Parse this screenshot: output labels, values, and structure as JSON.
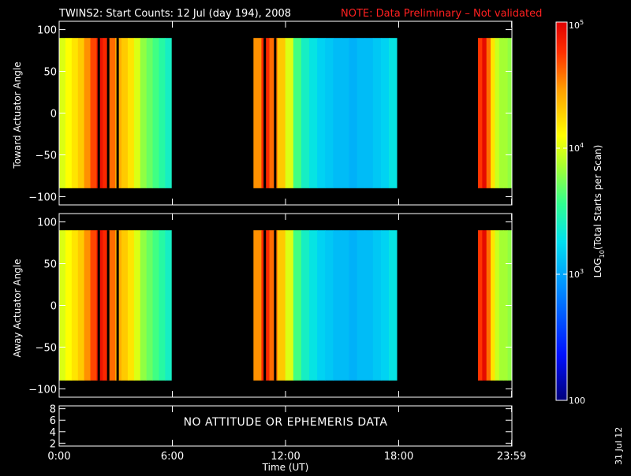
{
  "title": "TWINS2: Start Counts: 12 Jul (day 194), 2008",
  "note": "NOTE: Data Preliminary – Not validated",
  "side_date": "31 Jul 12",
  "no_data_message": "NO ATTITUDE OR EPHEMERIS DATA",
  "colors": {
    "background": "#000000",
    "axes": "#ffffff",
    "note": "#ff2020"
  },
  "chart_data": [
    {
      "type": "heatmap",
      "ylabel": "Toward Actuator Angle",
      "xlim": [
        0,
        24
      ],
      "ylim": [
        -110,
        110
      ],
      "data_y_range": [
        -90,
        90
      ],
      "y_ticks": [
        100,
        50,
        0,
        -50,
        -100
      ],
      "y_tick_labels": [
        "100",
        "50",
        "0",
        "−50",
        "−100"
      ],
      "segments": [
        {
          "start_hour": 0.0,
          "end_hour": 5.95,
          "log10_counts": [
            4.0,
            4.1,
            4.2,
            4.3,
            4.5,
            4.7,
            4.9,
            4.8,
            4.6,
            4.4,
            4.3,
            4.2,
            4.0,
            3.8,
            3.7,
            3.6,
            3.5,
            3.4
          ],
          "gaps_hours": [
            2.1,
            2.6,
            3.1
          ]
        },
        {
          "start_hour": 10.3,
          "end_hour": 17.9,
          "log10_counts": [
            4.5,
            4.8,
            4.6,
            4.3,
            4.0,
            3.6,
            3.4,
            3.3,
            3.2,
            3.15,
            3.1,
            3.1,
            3.05,
            3.1,
            3.1,
            3.15,
            3.2,
            3.3
          ],
          "gaps_hours": [
            10.9,
            11.45
          ]
        },
        {
          "start_hour": 22.2,
          "end_hour": 24.0,
          "log10_counts": [
            4.75,
            4.95,
            4.6,
            4.2,
            3.95,
            3.85,
            3.85,
            3.8
          ]
        }
      ]
    },
    {
      "type": "heatmap",
      "ylabel": "Away Actuator Angle",
      "xlim": [
        0,
        24
      ],
      "ylim": [
        -110,
        110
      ],
      "data_y_range": [
        -90,
        90
      ],
      "y_ticks": [
        100,
        50,
        0,
        -50,
        -100
      ],
      "y_tick_labels": [
        "100",
        "50",
        "0",
        "−50",
        "−100"
      ],
      "segments": [
        {
          "start_hour": 0.0,
          "end_hour": 5.95,
          "log10_counts": [
            4.0,
            4.1,
            4.2,
            4.3,
            4.5,
            4.7,
            4.9,
            4.8,
            4.6,
            4.4,
            4.3,
            4.2,
            4.0,
            3.8,
            3.7,
            3.6,
            3.5,
            3.4
          ],
          "gaps_hours": [
            2.1,
            2.6,
            3.1
          ]
        },
        {
          "start_hour": 10.3,
          "end_hour": 17.9,
          "log10_counts": [
            4.5,
            4.8,
            4.6,
            4.3,
            4.0,
            3.6,
            3.4,
            3.3,
            3.2,
            3.15,
            3.1,
            3.1,
            3.05,
            3.1,
            3.1,
            3.15,
            3.2,
            3.3
          ],
          "gaps_hours": [
            10.9,
            11.45
          ]
        },
        {
          "start_hour": 22.2,
          "end_hour": 24.0,
          "log10_counts": [
            4.75,
            4.95,
            4.6,
            4.2,
            3.95,
            3.85,
            3.85,
            3.8
          ]
        }
      ]
    },
    {
      "type": "line",
      "ylim": [
        1.5,
        8.5
      ],
      "y_ticks": [
        8,
        6,
        4,
        2
      ],
      "y_tick_labels": [
        "8",
        "6",
        "4",
        "2"
      ],
      "x_ticks": [
        0,
        6,
        12,
        18,
        23.983
      ],
      "x_tick_labels": [
        "0:00",
        "6:00",
        "12:00",
        "18:00",
        "23:59"
      ],
      "xlabel": "Time (UT)"
    }
  ],
  "colorbar": {
    "label": "LOG10(Total Starts per Scan)",
    "range_log10": [
      2,
      5
    ],
    "ticks_log10": [
      5,
      4,
      3,
      2
    ],
    "tick_labels": [
      "10^5",
      "10^4",
      "10^3",
      "100"
    ]
  }
}
